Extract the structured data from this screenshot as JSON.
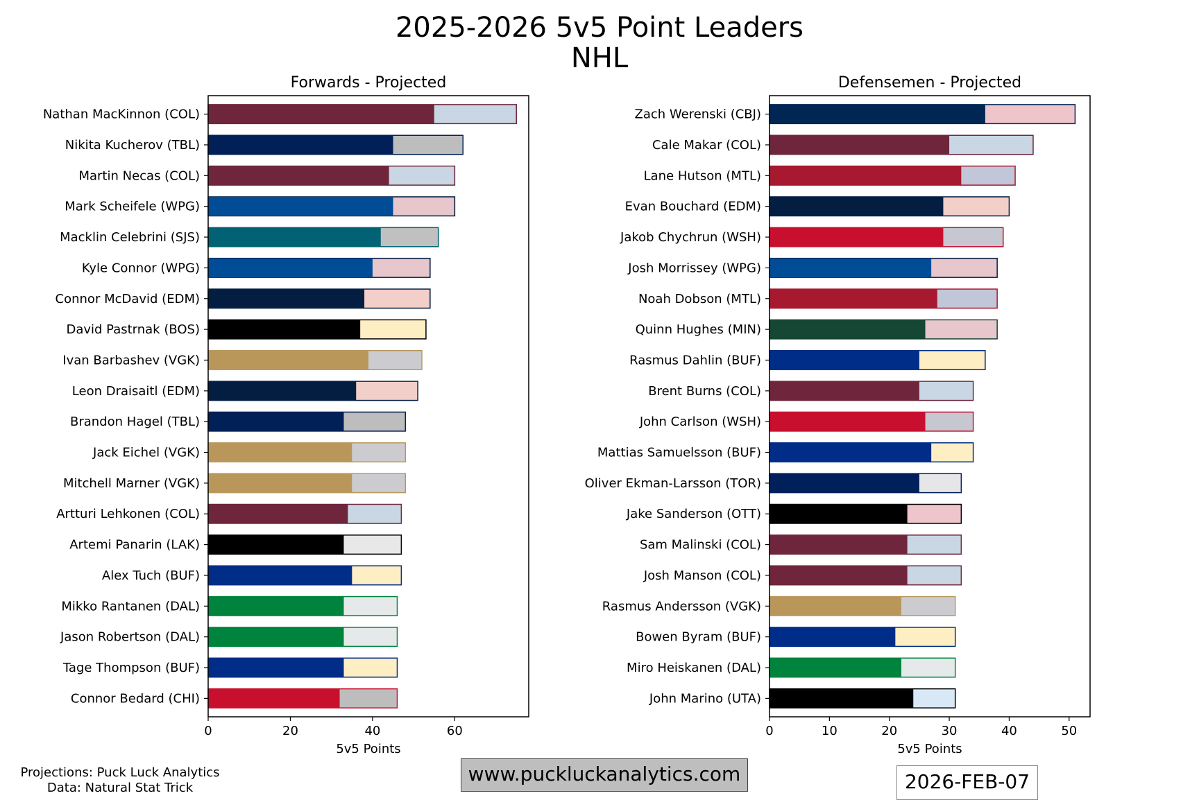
{
  "title": "2025-2026 5v5 Point Leaders",
  "subtitle": "NHL",
  "footer": {
    "projections_credit": "Projections: Puck Luck Analytics",
    "data_credit": "Data: Natural Stat Trick",
    "website": "www.puckluckanalytics.com",
    "date": "2026-FEB-07"
  },
  "chart_data": [
    {
      "type": "bar",
      "orientation": "horizontal",
      "stacked": true,
      "title": "Forwards - Projected",
      "xlabel": "5v5 Points",
      "ylabel": "",
      "xlim": [
        0,
        78
      ],
      "xticks": [
        0,
        20,
        40,
        60
      ],
      "grid": false,
      "series_note": "darker segment = current points, lighter segment = projected remaining",
      "players": [
        {
          "label": "Nathan MacKinnon (COL)",
          "current": 55,
          "projected": 75,
          "color": "#6f263d",
          "light": "#c8d7e3",
          "edge": "#6f263d"
        },
        {
          "label": "Nikita Kucherov (TBL)",
          "current": 45,
          "projected": 62,
          "color": "#002057",
          "light": "#bdbdbd",
          "edge": "#002057"
        },
        {
          "label": "Martin Necas (COL)",
          "current": 44,
          "projected": 60,
          "color": "#6f263d",
          "light": "#c8d7e3",
          "edge": "#6f263d"
        },
        {
          "label": "Mark Scheifele (WPG)",
          "current": 45,
          "projected": 60,
          "color": "#004c97",
          "light": "#e8c7cc",
          "edge": "#041e42"
        },
        {
          "label": "Macklin Celebrini (SJS)",
          "current": 42,
          "projected": 56,
          "color": "#006272",
          "light": "#c0c0c0",
          "edge": "#006272"
        },
        {
          "label": "Kyle Connor (WPG)",
          "current": 40,
          "projected": 54,
          "color": "#004c97",
          "light": "#e8c7cc",
          "edge": "#041e42"
        },
        {
          "label": "Connor McDavid (EDM)",
          "current": 38,
          "projected": 54,
          "color": "#041e42",
          "light": "#f2cfc8",
          "edge": "#041e42"
        },
        {
          "label": "David Pastrnak (BOS)",
          "current": 37,
          "projected": 53,
          "color": "#000000",
          "light": "#fdeec4",
          "edge": "#000000"
        },
        {
          "label": "Ivan Barbashev (VGK)",
          "current": 39,
          "projected": 52,
          "color": "#b9975b",
          "light": "#ccccd0",
          "edge": "#b9975b"
        },
        {
          "label": "Leon Draisaitl (EDM)",
          "current": 36,
          "projected": 51,
          "color": "#041e42",
          "light": "#f2cfc8",
          "edge": "#041e42"
        },
        {
          "label": "Brandon Hagel (TBL)",
          "current": 33,
          "projected": 48,
          "color": "#002057",
          "light": "#bdbdbd",
          "edge": "#002057"
        },
        {
          "label": "Jack Eichel (VGK)",
          "current": 35,
          "projected": 48,
          "color": "#b9975b",
          "light": "#ccccd0",
          "edge": "#b9975b"
        },
        {
          "label": "Mitchell Marner (VGK)",
          "current": 35,
          "projected": 48,
          "color": "#b9975b",
          "light": "#ccccd0",
          "edge": "#b9975b"
        },
        {
          "label": "Artturi Lehkonen (COL)",
          "current": 34,
          "projected": 47,
          "color": "#6f263d",
          "light": "#c8d7e3",
          "edge": "#6f263d"
        },
        {
          "label": "Artemi Panarin (LAK)",
          "current": 33,
          "projected": 47,
          "color": "#000000",
          "light": "#e8e8e8",
          "edge": "#000000"
        },
        {
          "label": "Alex Tuch (BUF)",
          "current": 35,
          "projected": 47,
          "color": "#002d87",
          "light": "#fdeec4",
          "edge": "#002d87"
        },
        {
          "label": "Mikko Rantanen (DAL)",
          "current": 33,
          "projected": 46,
          "color": "#00843d",
          "light": "#e6e9e9",
          "edge": "#00843d"
        },
        {
          "label": "Jason Robertson (DAL)",
          "current": 33,
          "projected": 46,
          "color": "#00843d",
          "light": "#e6e9e9",
          "edge": "#00843d"
        },
        {
          "label": "Tage Thompson (BUF)",
          "current": 33,
          "projected": 46,
          "color": "#002d87",
          "light": "#fdeec4",
          "edge": "#002d87"
        },
        {
          "label": "Connor Bedard (CHI)",
          "current": 32,
          "projected": 46,
          "color": "#c8102e",
          "light": "#bdbdbd",
          "edge": "#c8102e"
        }
      ]
    },
    {
      "type": "bar",
      "orientation": "horizontal",
      "stacked": true,
      "title": "Defensemen - Projected",
      "xlabel": "5v5 Points",
      "ylabel": "",
      "xlim": [
        0,
        53.5
      ],
      "xticks": [
        0,
        10,
        20,
        30,
        40,
        50
      ],
      "grid": false,
      "series_note": "darker segment = current points, lighter segment = projected remaining",
      "players": [
        {
          "label": "Zach Werenski (CBJ)",
          "current": 36,
          "projected": 51,
          "color": "#002654",
          "light": "#eec5cb",
          "edge": "#002654"
        },
        {
          "label": "Cale Makar (COL)",
          "current": 30,
          "projected": 44,
          "color": "#6f263d",
          "light": "#c8d7e3",
          "edge": "#6f263d"
        },
        {
          "label": "Lane Hutson (MTL)",
          "current": 32,
          "projected": 41,
          "color": "#a6192e",
          "light": "#c1c6d9",
          "edge": "#a6192e"
        },
        {
          "label": "Evan Bouchard (EDM)",
          "current": 29,
          "projected": 40,
          "color": "#041e42",
          "light": "#f2cfc8",
          "edge": "#041e42"
        },
        {
          "label": "Jakob Chychrun (WSH)",
          "current": 29,
          "projected": 39,
          "color": "#c8102e",
          "light": "#c6c7d0",
          "edge": "#c8102e"
        },
        {
          "label": "Josh Morrissey (WPG)",
          "current": 27,
          "projected": 38,
          "color": "#004c97",
          "light": "#e8c7cc",
          "edge": "#041e42"
        },
        {
          "label": "Noah Dobson (MTL)",
          "current": 28,
          "projected": 38,
          "color": "#a6192e",
          "light": "#c1c6d9",
          "edge": "#a6192e"
        },
        {
          "label": "Quinn Hughes (MIN)",
          "current": 26,
          "projected": 38,
          "color": "#154734",
          "light": "#e8c7cc",
          "edge": "#154734"
        },
        {
          "label": "Rasmus Dahlin (BUF)",
          "current": 25,
          "projected": 36,
          "color": "#002d87",
          "light": "#fdeec4",
          "edge": "#002d87"
        },
        {
          "label": "Brent Burns (COL)",
          "current": 25,
          "projected": 34,
          "color": "#6f263d",
          "light": "#c8d7e3",
          "edge": "#6f263d"
        },
        {
          "label": "John Carlson (WSH)",
          "current": 26,
          "projected": 34,
          "color": "#c8102e",
          "light": "#c6c7d0",
          "edge": "#c8102e"
        },
        {
          "label": "Mattias Samuelsson (BUF)",
          "current": 27,
          "projected": 34,
          "color": "#002d87",
          "light": "#fdeec4",
          "edge": "#002d87"
        },
        {
          "label": "Oliver Ekman-Larsson (TOR)",
          "current": 25,
          "projected": 32,
          "color": "#00205b",
          "light": "#e6e6e8",
          "edge": "#00205b"
        },
        {
          "label": "Jake Sanderson (OTT)",
          "current": 23,
          "projected": 32,
          "color": "#000000",
          "light": "#eec5cb",
          "edge": "#000000"
        },
        {
          "label": "Sam Malinski (COL)",
          "current": 23,
          "projected": 32,
          "color": "#6f263d",
          "light": "#c8d7e3",
          "edge": "#6f263d"
        },
        {
          "label": "Josh Manson (COL)",
          "current": 23,
          "projected": 32,
          "color": "#6f263d",
          "light": "#c8d7e3",
          "edge": "#6f263d"
        },
        {
          "label": "Rasmus Andersson (VGK)",
          "current": 22,
          "projected": 31,
          "color": "#b9975b",
          "light": "#ccccd0",
          "edge": "#b9975b"
        },
        {
          "label": "Bowen Byram (BUF)",
          "current": 21,
          "projected": 31,
          "color": "#002d87",
          "light": "#fdeec4",
          "edge": "#002d87"
        },
        {
          "label": "Miro Heiskanen (DAL)",
          "current": 22,
          "projected": 31,
          "color": "#00843d",
          "light": "#e6e9e9",
          "edge": "#00843d"
        },
        {
          "label": "John Marino (UTA)",
          "current": 24,
          "projected": 31,
          "color": "#000000",
          "light": "#d9e8f6",
          "edge": "#000000"
        }
      ]
    }
  ]
}
